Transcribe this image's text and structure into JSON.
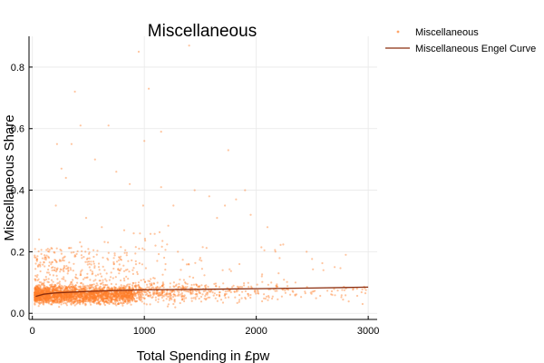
{
  "chart_data": {
    "type": "scatter",
    "title": "Miscellaneous",
    "xlabel": "Total Spending in £pw",
    "ylabel": "Miscellaneous Share",
    "xlim": [
      -30,
      3080
    ],
    "ylim": [
      -0.02,
      0.9
    ],
    "x_ticks": [
      0,
      1000,
      2000,
      3000
    ],
    "x_tick_labels": [
      "0",
      "1000",
      "2000",
      "3000"
    ],
    "y_ticks": [
      0.0,
      0.2,
      0.4,
      0.6,
      0.8
    ],
    "y_tick_labels": [
      "0.0",
      "0.2",
      "0.4",
      "0.6",
      "0.8"
    ],
    "grid": true,
    "legend_position": "outside-top-right",
    "series": [
      {
        "name": "Miscellaneous",
        "kind": "scatter",
        "color": "#ff7f2a",
        "opacity": 0.45,
        "points": [
          [
            950,
            0.85
          ],
          [
            1400,
            0.87
          ],
          [
            380,
            0.72
          ],
          [
            1040,
            0.73
          ],
          [
            430,
            0.61
          ],
          [
            680,
            0.61
          ],
          [
            1150,
            0.59
          ],
          [
            1000,
            0.56
          ],
          [
            220,
            0.55
          ],
          [
            350,
            0.55
          ],
          [
            1750,
            0.53
          ],
          [
            560,
            0.5
          ],
          [
            260,
            0.47
          ],
          [
            300,
            0.44
          ],
          [
            750,
            0.46
          ],
          [
            870,
            0.42
          ],
          [
            1150,
            0.41
          ],
          [
            1450,
            0.4
          ],
          [
            1900,
            0.4
          ],
          [
            1580,
            0.38
          ],
          [
            1820,
            0.37
          ],
          [
            210,
            0.35
          ],
          [
            990,
            0.35
          ],
          [
            1260,
            0.35
          ],
          [
            1720,
            0.35
          ],
          [
            1950,
            0.32
          ],
          [
            2100,
            0.28
          ],
          [
            1650,
            0.31
          ],
          [
            2800,
            0.19
          ],
          [
            2450,
            0.2
          ],
          [
            2600,
            0.14
          ],
          [
            2950,
            0.03
          ],
          [
            2700,
            0.15
          ],
          [
            2200,
            0.13
          ],
          [
            2350,
            0.1
          ],
          [
            2050,
            0.12
          ],
          [
            60,
            0.24
          ],
          [
            150,
            0.2
          ],
          [
            480,
            0.31
          ],
          [
            620,
            0.28
          ],
          [
            820,
            0.27
          ],
          [
            1100,
            0.22
          ],
          [
            1300,
            0.2
          ],
          [
            1500,
            0.18
          ],
          [
            1700,
            0.14
          ],
          [
            1850,
            0.16
          ],
          [
            2500,
            0.07
          ],
          [
            2900,
            0.08
          ]
        ],
        "density": [
          {
            "x_range": [
              20,
              900
            ],
            "y_center": 0.06,
            "y_spread": 0.06,
            "count": 2600
          },
          {
            "x_range": [
              900,
              1500
            ],
            "y_center": 0.07,
            "y_spread": 0.08,
            "count": 380
          },
          {
            "x_range": [
              1500,
              2200
            ],
            "y_center": 0.07,
            "y_spread": 0.07,
            "count": 140
          },
          {
            "x_range": [
              2200,
              3000
            ],
            "y_center": 0.07,
            "y_spread": 0.06,
            "count": 60
          }
        ]
      },
      {
        "name": "Miscellaneous Engel Curve",
        "kind": "line",
        "color": "#8b2e0e",
        "points": [
          [
            30,
            0.055
          ],
          [
            100,
            0.062
          ],
          [
            200,
            0.066
          ],
          [
            300,
            0.068
          ],
          [
            500,
            0.071
          ],
          [
            750,
            0.074
          ],
          [
            1000,
            0.076
          ],
          [
            1500,
            0.078
          ],
          [
            2000,
            0.08
          ],
          [
            2500,
            0.082
          ],
          [
            3000,
            0.085
          ]
        ]
      }
    ]
  }
}
